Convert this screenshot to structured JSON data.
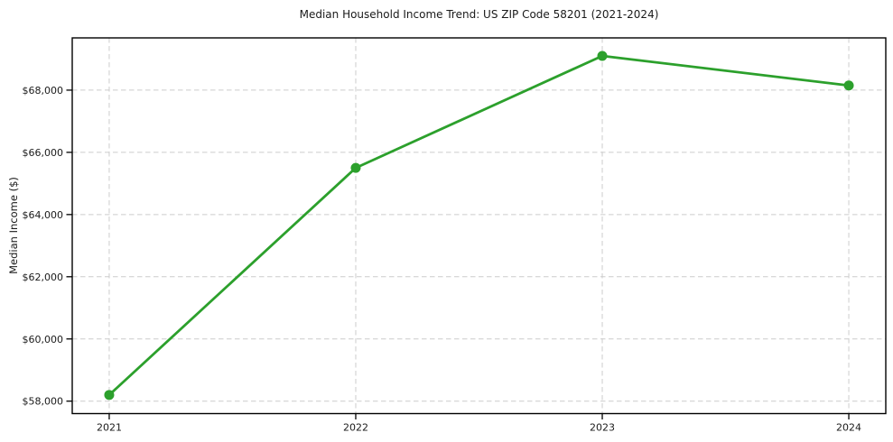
{
  "chart_data": {
    "type": "line",
    "title": "Median Household Income Trend: US ZIP Code 58201 (2021-2024)",
    "ylabel": "Median Income ($)",
    "xlabel": "",
    "x": [
      2021,
      2022,
      2023,
      2024
    ],
    "xtick_labels": [
      "2021",
      "2022",
      "2023",
      "2024"
    ],
    "values": [
      58200,
      65500,
      69100,
      68150
    ],
    "yticks": [
      58000,
      60000,
      62000,
      64000,
      66000,
      68000
    ],
    "ytick_labels": [
      "$58,000",
      "$60,000",
      "$62,000",
      "$64,000",
      "$66,000",
      "$68,000"
    ],
    "xlim": [
      2020.85,
      2024.15
    ],
    "ylim": [
      57600,
      69680
    ],
    "grid": true,
    "grid_style": "dashed",
    "legend": "none",
    "line_color": "#2ca02c",
    "marker_color": "#2ca02c",
    "grid_color": "#cccccc",
    "axis_color": "#000000",
    "text_color": "#1a1a1a",
    "background": "#ffffff"
  }
}
